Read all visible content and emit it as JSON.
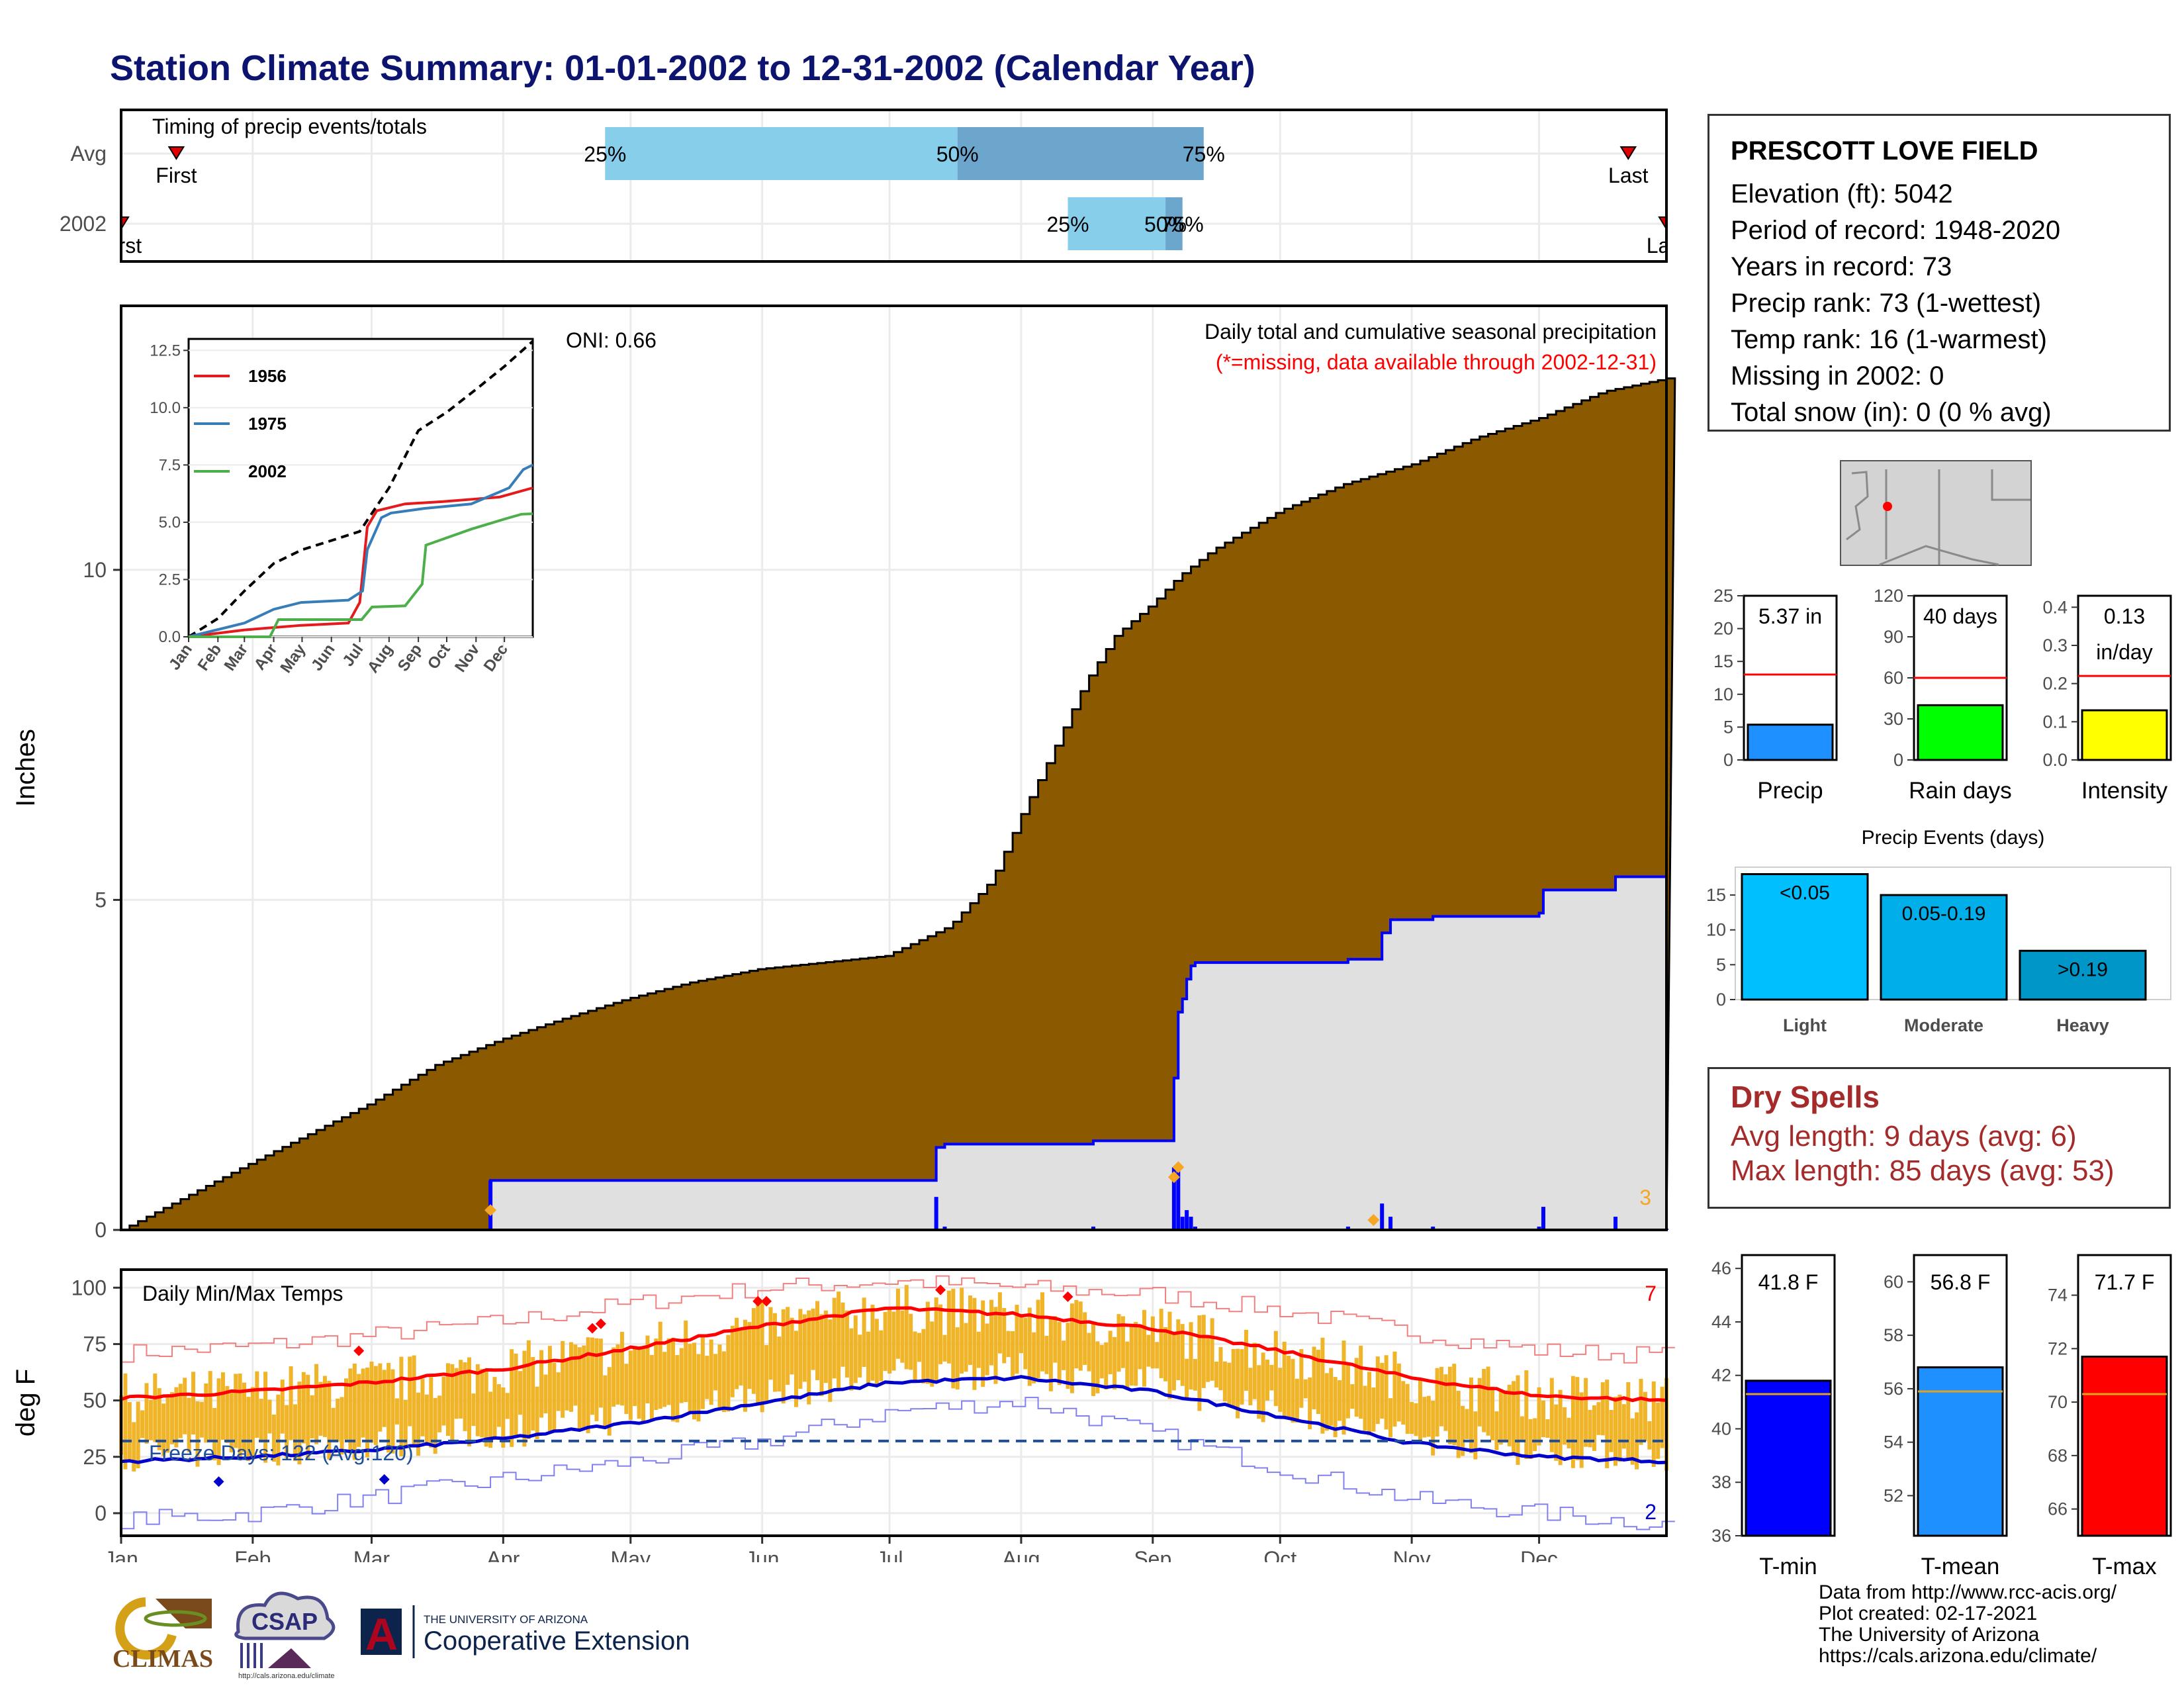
{
  "title": "Station Climate Summary: 01-01-2002 to 12-31-2002 (Calendar Year)",
  "timing": {
    "title": "Timing of precip events/totals",
    "rows": [
      {
        "label": "Avg",
        "first_day": 14,
        "q25_day": 115,
        "q50_day": 198,
        "q75_day": 256,
        "last_day": 356,
        "first_label": "First",
        "last_label": "Last",
        "q25_label": "25%",
        "q50_label": "50%",
        "q75_label": "75%"
      },
      {
        "label": "2002",
        "first_day": 1,
        "q25_day": 224,
        "q50_day": 247,
        "q75_day": 251,
        "last_day": 365,
        "first_label": "First",
        "last_label": "Last",
        "q25_label": "25%",
        "q50_label": "50%",
        "q75_label": "75%"
      }
    ]
  },
  "precip_panel": {
    "caption": "Daily total and cumulative seasonal precipitation",
    "missing_note": "(*=missing, data available through 2002-12-31)",
    "oni_label": "ONI: 0.66",
    "ylabel": "Inches",
    "corner_count": "3",
    "yticks": [
      "0",
      "5",
      "10"
    ]
  },
  "chart_data": [
    {
      "type": "area",
      "title": "Daily total and cumulative seasonal precipitation",
      "xlabel": "",
      "ylabel": "Inches",
      "ylim": [
        0,
        14
      ],
      "x_unit": "day of year",
      "series": [
        {
          "name": "Avg",
          "x": [
            1,
            31,
            59,
            75,
            91,
            105,
            120,
            135,
            151,
            166,
            181,
            196,
            206,
            213,
            220,
            228,
            235,
            244,
            250,
            258,
            266,
            274,
            289,
            305,
            320,
            335,
            350,
            365
          ],
          "values": [
            0,
            1.0,
            1.9,
            2.5,
            2.9,
            3.2,
            3.5,
            3.75,
            3.95,
            4.05,
            4.15,
            4.6,
            5.3,
            6.3,
            7.2,
            8.3,
            9.0,
            9.5,
            9.9,
            10.3,
            10.6,
            10.9,
            11.3,
            11.6,
            12.0,
            12.3,
            12.7,
            12.9
          ]
        },
        {
          "name": "2002",
          "x": [
            1,
            87,
            88,
            95,
            96,
            115,
            116,
            184,
            193,
            195,
            230,
            248,
            249,
            250,
            251,
            252,
            253,
            254,
            290,
            298,
            300,
            310,
            335,
            336,
            350,
            353,
            365
          ],
          "values": [
            0,
            0,
            0.75,
            0.75,
            0.75,
            0.75,
            0.75,
            0.75,
            1.25,
            1.3,
            1.35,
            1.35,
            2.3,
            3.3,
            3.5,
            3.8,
            4.0,
            4.05,
            4.1,
            4.5,
            4.7,
            4.75,
            4.8,
            5.15,
            5.15,
            5.35,
            5.37
          ]
        }
      ]
    },
    {
      "type": "line",
      "title": "",
      "xlabel": "",
      "ylabel": "",
      "ylim": [
        0,
        12.5
      ],
      "categories": [
        "Jan",
        "Feb",
        "Mar",
        "Apr",
        "May",
        "Jun",
        "Jul",
        "Aug",
        "Sep",
        "Oct",
        "Nov",
        "Dec"
      ],
      "yticks": [
        "0.0",
        "2.5",
        "5.0",
        "7.5",
        "10.0",
        "12.5"
      ],
      "series": [
        {
          "name": "",
          "x": [
            1,
            32,
            60,
            91,
            121,
            152,
            182,
            213,
            244,
            274,
            305,
            335,
            365
          ],
          "values": [
            0,
            0.8,
            2.0,
            3.2,
            3.8,
            4.2,
            4.6,
            6.5,
            9.0,
            9.8,
            10.8,
            11.8,
            12.9
          ]
        },
        {
          "name": "1956",
          "x": [
            1,
            60,
            120,
            170,
            182,
            190,
            200,
            230,
            270,
            300,
            330,
            365
          ],
          "values": [
            0,
            0.3,
            0.5,
            0.6,
            1.5,
            4.8,
            5.5,
            5.8,
            5.9,
            6.0,
            6.1,
            6.5
          ]
        },
        {
          "name": "1975",
          "x": [
            1,
            60,
            91,
            120,
            170,
            185,
            190,
            205,
            215,
            250,
            300,
            340,
            355,
            365
          ],
          "values": [
            0,
            0.6,
            1.2,
            1.5,
            1.6,
            2.0,
            3.8,
            5.2,
            5.4,
            5.6,
            5.8,
            6.5,
            7.3,
            7.5
          ]
        },
        {
          "name": "2002",
          "x": [
            1,
            87,
            96,
            184,
            195,
            230,
            248,
            252,
            300,
            336,
            353,
            365
          ],
          "values": [
            0,
            0,
            0.75,
            0.75,
            1.3,
            1.35,
            2.3,
            4.0,
            4.7,
            5.15,
            5.35,
            5.37
          ]
        }
      ]
    },
    {
      "type": "line",
      "title": "Daily Min/Max Temps",
      "xlabel": "",
      "ylabel": "deg F",
      "ylim": [
        -10,
        108
      ],
      "freeze_line": 32,
      "categories": [
        "Jan",
        "Feb",
        "Mar",
        "Apr",
        "May",
        "Jun",
        "Jul",
        "Aug",
        "Sep",
        "Oct",
        "Nov",
        "Dec"
      ],
      "yticks": [
        "0",
        "25",
        "50",
        "75",
        "100"
      ],
      "series": [
        {
          "name": "Avg Max",
          "x": [
            1,
            32,
            60,
            91,
            121,
            152,
            182,
            213,
            244,
            274,
            305,
            335,
            365
          ],
          "values": [
            51,
            54,
            58,
            64,
            73,
            83,
            91,
            88,
            82,
            72,
            60,
            52,
            50
          ]
        },
        {
          "name": "Avg Min",
          "x": [
            1,
            32,
            60,
            91,
            121,
            152,
            182,
            213,
            244,
            274,
            305,
            335,
            365
          ],
          "values": [
            23,
            25,
            28,
            33,
            40,
            49,
            58,
            60,
            54,
            43,
            31,
            25,
            23
          ]
        },
        {
          "name": "Record Max",
          "x": [
            1,
            32,
            60,
            91,
            121,
            152,
            182,
            213,
            244,
            274,
            305,
            335,
            365
          ],
          "values": [
            71,
            74,
            79,
            85,
            93,
            100,
            103,
            100,
            97,
            90,
            80,
            72,
            70
          ]
        },
        {
          "name": "Record Min",
          "x": [
            1,
            32,
            60,
            91,
            121,
            152,
            182,
            213,
            244,
            274,
            305,
            335,
            365
          ],
          "values": [
            -3,
            0,
            7,
            15,
            23,
            32,
            45,
            50,
            35,
            20,
            6,
            0,
            -5
          ]
        }
      ]
    },
    {
      "type": "bar",
      "title": "",
      "categories": [
        "Precip",
        "Rain days",
        "Intensity"
      ],
      "values": [
        5.37,
        40,
        0.13
      ],
      "averages": [
        13.0,
        60,
        0.22
      ]
    },
    {
      "type": "bar",
      "title": "Precip Events (days)",
      "categories": [
        "Light",
        "Moderate",
        "Heavy"
      ],
      "values": [
        18,
        15,
        7
      ],
      "ylim": [
        0,
        19
      ]
    },
    {
      "type": "bar",
      "title": "",
      "categories": [
        "T-min",
        "T-mean",
        "T-max"
      ],
      "values": [
        41.8,
        56.8,
        71.7
      ],
      "averages": [
        41.3,
        55.9,
        70.3
      ]
    }
  ],
  "inset": {
    "yticks": [
      "0.0",
      "2.5",
      "5.0",
      "7.5",
      "10.0",
      "12.5"
    ],
    "months": [
      "Jan",
      "Feb",
      "Mar",
      "Apr",
      "May",
      "Jun",
      "Jul",
      "Aug",
      "Sep",
      "Oct",
      "Nov",
      "Dec"
    ],
    "legend": [
      {
        "name": "1956",
        "color": "#e41a1c"
      },
      {
        "name": "1975",
        "color": "#377eb8"
      },
      {
        "name": "2002",
        "color": "#4daf4a"
      }
    ]
  },
  "temp_panel": {
    "title": "Daily Min/Max Temps",
    "ylabel": "deg F",
    "freeze_label": "Freeze Days: 122 (Avg:120)",
    "count_top": "7",
    "count_bottom": "2",
    "yticks": [
      "0",
      "25",
      "50",
      "75",
      "100"
    ],
    "months": [
      "Jan",
      "Feb",
      "Mar",
      "Apr",
      "May",
      "Jun",
      "Jul",
      "Aug",
      "Sep",
      "Oct",
      "Nov",
      "Dec"
    ]
  },
  "station": {
    "name": "PRESCOTT LOVE FIELD",
    "elevation": "Elevation (ft): 5042",
    "period": "Period of record: 1948-2020",
    "years": "Years in record: 73",
    "precip_rank": "Precip rank: 73 (1-wettest)",
    "temp_rank": "Temp rank: 16 (1-warmest)",
    "missing": "Missing in 2002: 0",
    "snow": "Total snow (in): 0 (0 % avg)"
  },
  "summary_bars": [
    {
      "label": "Precip",
      "value_label": "5.37 in",
      "value": 5.37,
      "avg": 13.0,
      "ymax": 25,
      "yticks": [
        "0",
        "5",
        "10",
        "15",
        "20",
        "25"
      ],
      "color": "#1e90ff"
    },
    {
      "label": "Rain days",
      "value_label": "40 days",
      "value": 40,
      "avg": 60,
      "ymax": 120,
      "yticks": [
        "0",
        "30",
        "60",
        "90",
        "120"
      ],
      "color": "#00ff00"
    },
    {
      "label": "Intensity",
      "value_label": "0.13",
      "value_label2": "in/day",
      "value": 0.13,
      "avg": 0.22,
      "ymax": 0.43,
      "yticks": [
        "0.0",
        "0.1",
        "0.2",
        "0.3",
        "0.4"
      ],
      "color": "#ffff00"
    }
  ],
  "events": {
    "title": "Precip Events (days)",
    "yticks": [
      "0",
      "5",
      "10",
      "15"
    ],
    "bars": [
      {
        "label": "Light",
        "range": "<0.05",
        "value": 18,
        "color": "#00bfff"
      },
      {
        "label": "Moderate",
        "range": "0.05-0.19",
        "value": 15,
        "color": "#00aeea"
      },
      {
        "label": "Heavy",
        "range": ">0.19",
        "value": 7,
        "color": "#0096c8"
      }
    ]
  },
  "dry_spells": {
    "title": "Dry Spells",
    "avg_length": "Avg length: 9 days (avg: 6)",
    "max_length": "Max length: 85 days (avg: 53)"
  },
  "temp_bars": [
    {
      "label": "T-min",
      "value_label": "41.8 F",
      "value": 41.8,
      "avg": 41.3,
      "ymin": 36,
      "ymax": 46.5,
      "yticks": [
        "36",
        "38",
        "40",
        "42",
        "44",
        "46"
      ],
      "color": "#0000ff"
    },
    {
      "label": "T-mean",
      "value_label": "56.8 F",
      "value": 56.8,
      "avg": 55.9,
      "ymin": 50.5,
      "ymax": 61,
      "yticks": [
        "52",
        "54",
        "56",
        "58",
        "60"
      ],
      "color": "#1e90ff"
    },
    {
      "label": "T-max",
      "value_label": "71.7 F",
      "value": 71.7,
      "avg": 70.3,
      "ymin": 65,
      "ymax": 75.5,
      "yticks": [
        "66",
        "68",
        "70",
        "72",
        "74"
      ],
      "color": "#ff0000"
    }
  ],
  "credits": {
    "line1": "Data from http://www.rcc-acis.org/",
    "line2": "Plot created: 02-17-2021",
    "line3": "The University of Arizona",
    "line4": "https://cals.arizona.edu/climate/"
  },
  "logos": {
    "climas": "CLIMAS",
    "csap": "CSAP",
    "csap_url": "http://cals.arizona.edu/climate",
    "ua_small": "THE UNIVERSITY OF ARIZONA",
    "ua_big": "Cooperative Extension",
    "ua_letter": "A"
  },
  "colors": {
    "title": "#0d1470",
    "avg_area": "#8b5a00",
    "year_area": "#e0e0e0",
    "year_line": "#0000ff",
    "temp_bar": "#f0b429",
    "avg_max": "#ff0000",
    "avg_min": "#0000cc",
    "q_light": "#87ceeb",
    "q_dark": "#6ca6cd"
  }
}
